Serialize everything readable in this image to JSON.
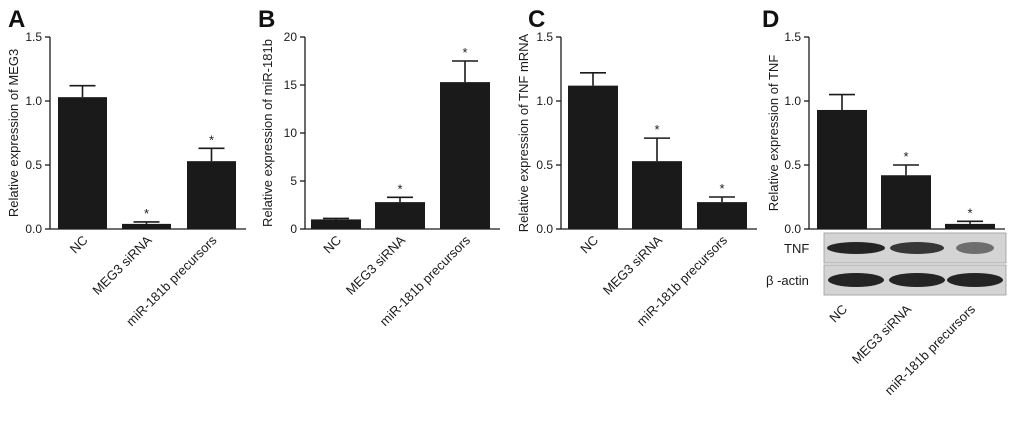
{
  "chart_data": [
    {
      "type": "bar",
      "panel_letter": "A",
      "ylabel": "Relative expression of MEG3",
      "categories": [
        "NC",
        "MEG3 siRNA",
        "miR-181b precursors"
      ],
      "values": [
        1.03,
        0.04,
        0.53
      ],
      "errors": [
        0.09,
        0.015,
        0.1
      ],
      "significance": [
        "",
        "*",
        "*"
      ],
      "ylim": [
        0,
        1.5
      ],
      "yticks": [
        "0.0",
        "0.5",
        "1.0",
        "1.5"
      ],
      "ytick_values": [
        0,
        0.5,
        1.0,
        1.5
      ],
      "bar_color": "#1a1a1a"
    },
    {
      "type": "bar",
      "panel_letter": "B",
      "ylabel": "Relative expression of miR-181b",
      "categories": [
        "NC",
        "MEG3 siRNA",
        "miR-181b precursors"
      ],
      "values": [
        1.0,
        2.8,
        15.3
      ],
      "errors": [
        0.1,
        0.5,
        2.2
      ],
      "significance": [
        "",
        "*",
        "*"
      ],
      "ylim": [
        0,
        20
      ],
      "yticks": [
        "0",
        "5",
        "10",
        "15",
        "20"
      ],
      "ytick_values": [
        0,
        5,
        10,
        15,
        20
      ],
      "bar_color": "#1a1a1a"
    },
    {
      "type": "bar",
      "panel_letter": "C",
      "ylabel": "Relative expression of TNF mRNA",
      "categories": [
        "NC",
        "MEG3 siRNA",
        "miR-181b precursors"
      ],
      "values": [
        1.12,
        0.53,
        0.21
      ],
      "errors": [
        0.1,
        0.18,
        0.04
      ],
      "significance": [
        "",
        "*",
        "*"
      ],
      "ylim": [
        0,
        1.5
      ],
      "yticks": [
        "0.0",
        "0.5",
        "1.0",
        "1.5"
      ],
      "ytick_values": [
        0,
        0.5,
        1.0,
        1.5
      ],
      "bar_color": "#1a1a1a"
    },
    {
      "type": "bar",
      "panel_letter": "D",
      "ylabel": "Relative expression of TNF",
      "categories": [
        "NC",
        "MEG3 siRNA",
        "miR-181b precursors"
      ],
      "values": [
        0.93,
        0.42,
        0.04
      ],
      "errors": [
        0.12,
        0.08,
        0.02
      ],
      "significance": [
        "",
        "*",
        "*"
      ],
      "ylim": [
        0,
        1.5
      ],
      "yticks": [
        "0.0",
        "0.5",
        "1.0",
        "1.5"
      ],
      "ytick_values": [
        0,
        0.5,
        1.0,
        1.5
      ],
      "bar_color": "#1a1a1a",
      "blot_labels": [
        "TNF",
        "β -actin"
      ]
    }
  ]
}
